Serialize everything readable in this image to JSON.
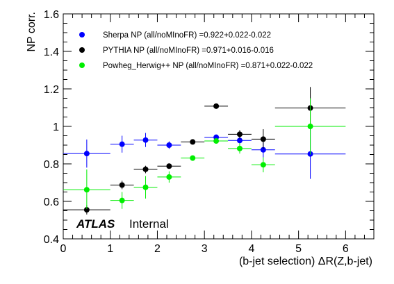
{
  "chart_data": {
    "type": "scatter",
    "title": "",
    "xlabel": "(b-jet selection) ΔR(Z,b-jet)",
    "ylabel": "NP corr.",
    "xlim": [
      0,
      6.6
    ],
    "ylim": [
      0.4,
      1.6
    ],
    "xticks": [
      0,
      1,
      2,
      3,
      4,
      5,
      6
    ],
    "xtick_labels": [
      "0",
      "1",
      "2",
      "3",
      "4",
      "5",
      "6"
    ],
    "yticks": [
      0.4,
      0.6,
      0.8,
      1.0,
      1.2,
      1.4,
      1.6
    ],
    "ytick_labels": [
      "0.4",
      "0.6",
      "0.8",
      "1",
      "1.2",
      "1.4",
      "1.6"
    ],
    "grid": false,
    "legend_position": "top-left",
    "annotation": {
      "experiment": "ATLAS",
      "status": "Internal"
    },
    "series": [
      {
        "name": "Sherpa NP (all/noMInoFR) =0.922+0.022-0.022",
        "color": "#0000ff",
        "points": [
          {
            "x": 0.5,
            "xlo": 0.0,
            "xhi": 1.0,
            "y": 0.855,
            "ylo": 0.78,
            "yhi": 0.93
          },
          {
            "x": 1.25,
            "xlo": 1.0,
            "xhi": 1.5,
            "y": 0.905,
            "ylo": 0.86,
            "yhi": 0.95
          },
          {
            "x": 1.75,
            "xlo": 1.5,
            "xhi": 2.0,
            "y": 0.927,
            "ylo": 0.89,
            "yhi": 0.965
          },
          {
            "x": 2.25,
            "xlo": 2.0,
            "xhi": 2.5,
            "y": 0.9,
            "ylo": 0.88,
            "yhi": 0.92
          },
          {
            "x": 3.25,
            "xlo": 3.0,
            "xhi": 3.5,
            "y": 0.942,
            "ylo": 0.93,
            "yhi": 0.955
          },
          {
            "x": 3.75,
            "xlo": 3.5,
            "xhi": 4.0,
            "y": 0.925,
            "ylo": 0.905,
            "yhi": 0.945
          },
          {
            "x": 4.25,
            "xlo": 4.0,
            "xhi": 4.5,
            "y": 0.875,
            "ylo": 0.835,
            "yhi": 0.915
          },
          {
            "x": 5.25,
            "xlo": 4.5,
            "xhi": 6.0,
            "y": 0.853,
            "ylo": 0.72,
            "yhi": 0.985
          }
        ]
      },
      {
        "name": "PYTHIA NP (all/noMInoFR) =0.971+0.016-0.016",
        "color": "#000000",
        "points": [
          {
            "x": 0.5,
            "xlo": 0.0,
            "xhi": 1.0,
            "y": 0.555,
            "ylo": 0.53,
            "yhi": 0.58
          },
          {
            "x": 1.25,
            "xlo": 1.0,
            "xhi": 1.5,
            "y": 0.687,
            "ylo": 0.665,
            "yhi": 0.71
          },
          {
            "x": 1.75,
            "xlo": 1.5,
            "xhi": 2.0,
            "y": 0.771,
            "ylo": 0.75,
            "yhi": 0.79
          },
          {
            "x": 2.25,
            "xlo": 2.0,
            "xhi": 2.5,
            "y": 0.788,
            "ylo": 0.775,
            "yhi": 0.8
          },
          {
            "x": 2.75,
            "xlo": 2.5,
            "xhi": 3.0,
            "y": 0.917,
            "ylo": 0.91,
            "yhi": 0.925
          },
          {
            "x": 3.25,
            "xlo": 3.0,
            "xhi": 3.5,
            "y": 1.108,
            "ylo": 1.103,
            "yhi": 1.113
          },
          {
            "x": 3.75,
            "xlo": 3.5,
            "xhi": 4.0,
            "y": 0.958,
            "ylo": 0.935,
            "yhi": 0.98
          },
          {
            "x": 4.25,
            "xlo": 4.0,
            "xhi": 4.5,
            "y": 0.932,
            "ylo": 0.88,
            "yhi": 0.985
          },
          {
            "x": 5.25,
            "xlo": 4.5,
            "xhi": 6.0,
            "y": 1.098,
            "ylo": 0.98,
            "yhi": 1.21
          }
        ]
      },
      {
        "name": "Powheg_Herwig++ NP (all/noMInoFR) =0.871+0.022-0.022",
        "color": "#00ee00",
        "points": [
          {
            "x": 0.5,
            "xlo": 0.0,
            "xhi": 1.0,
            "y": 0.662,
            "ylo": 0.56,
            "yhi": 0.77
          },
          {
            "x": 1.25,
            "xlo": 1.0,
            "xhi": 1.5,
            "y": 0.605,
            "ylo": 0.56,
            "yhi": 0.65
          },
          {
            "x": 1.75,
            "xlo": 1.5,
            "xhi": 2.0,
            "y": 0.675,
            "ylo": 0.615,
            "yhi": 0.735
          },
          {
            "x": 2.25,
            "xlo": 2.0,
            "xhi": 2.5,
            "y": 0.73,
            "ylo": 0.7,
            "yhi": 0.76
          },
          {
            "x": 2.75,
            "xlo": 2.5,
            "xhi": 3.0,
            "y": 0.831,
            "ylo": 0.82,
            "yhi": 0.845
          },
          {
            "x": 3.25,
            "xlo": 3.0,
            "xhi": 3.5,
            "y": 0.922,
            "ylo": 0.91,
            "yhi": 0.935
          },
          {
            "x": 3.75,
            "xlo": 3.5,
            "xhi": 4.0,
            "y": 0.882,
            "ylo": 0.855,
            "yhi": 0.91
          },
          {
            "x": 4.25,
            "xlo": 4.0,
            "xhi": 4.5,
            "y": 0.795,
            "ylo": 0.755,
            "yhi": 0.835
          },
          {
            "x": 5.25,
            "xlo": 4.5,
            "xhi": 6.0,
            "y": 1.0,
            "ylo": 0.85,
            "yhi": 1.15
          }
        ]
      }
    ]
  }
}
